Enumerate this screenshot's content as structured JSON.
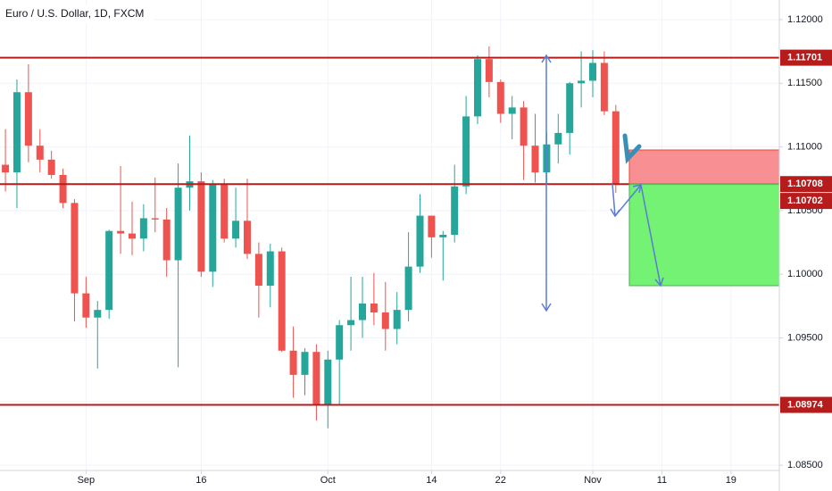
{
  "chart_data": {
    "type": "candlestick",
    "title": "Euro / U.S. Dollar, 1D, FXCM",
    "up_color": "#26a69a",
    "down_color": "#ef5350",
    "level_color": "#b71c1c",
    "grid": true,
    "xlim": [
      -0.47,
      67.2
    ],
    "xticks": [
      {
        "value": 7,
        "label": "Sep"
      },
      {
        "value": 17,
        "label": "16"
      },
      {
        "value": 28,
        "label": "Oct"
      },
      {
        "value": 37,
        "label": "14"
      },
      {
        "value": 43,
        "label": "22"
      },
      {
        "value": 51,
        "label": "Nov"
      },
      {
        "value": 57,
        "label": "11"
      },
      {
        "value": 63,
        "label": "19"
      }
    ],
    "ylim": [
      1.08459,
      1.12154
    ],
    "yticks": [
      {
        "value": 1.085,
        "label": "1.08500"
      },
      {
        "value": 1.09,
        "label": "1.09000"
      },
      {
        "value": 1.095,
        "label": "1.09500"
      },
      {
        "value": 1.1,
        "label": "1.10000"
      },
      {
        "value": 1.105,
        "label": "1.10500"
      },
      {
        "value": 1.11,
        "label": "1.11000"
      },
      {
        "value": 1.115,
        "label": "1.11500"
      },
      {
        "value": 1.12,
        "label": "1.12000"
      }
    ],
    "levels": [
      1.11701,
      1.10708,
      1.08974
    ],
    "open": [
      1.1086,
      1.108,
      1.1143,
      1.1101,
      1.109,
      1.1078,
      1.1056,
      1.0985,
      1.0966,
      1.0972,
      1.1034,
      1.1032,
      1.1028,
      1.1044,
      1.1043,
      1.1011,
      1.1068,
      1.1073,
      1.1002,
      1.1071,
      1.1028,
      1.1042,
      1.1016,
      1.0991,
      1.1018,
      1.094,
      1.0921,
      1.0939,
      1.0898,
      1.0933,
      1.096,
      1.0964,
      1.0977,
      1.097,
      1.0957,
      1.0972,
      1.1006,
      1.1046,
      1.1029,
      1.1031,
      1.1069,
      1.1124,
      1.1169,
      1.1151,
      1.1126,
      1.1131,
      1.1101,
      1.108,
      1.1102,
      1.1111,
      1.115,
      1.1152,
      1.1166,
      1.1128
    ],
    "high": [
      1.1114,
      1.1153,
      1.1165,
      1.1114,
      1.1097,
      1.1083,
      1.1059,
      1.0998,
      1.0979,
      1.1035,
      1.1085,
      1.1057,
      1.1055,
      1.1076,
      1.1052,
      1.1087,
      1.1109,
      1.108,
      1.1074,
      1.1075,
      1.1068,
      1.1075,
      1.1025,
      1.1024,
      1.1021,
      1.0959,
      1.0942,
      1.0945,
      1.094,
      1.0964,
      1.0998,
      1.0998,
      1.1001,
      1.0994,
      1.0986,
      1.1033,
      1.1063,
      1.1046,
      1.1034,
      1.1086,
      1.114,
      1.1172,
      1.1179,
      1.1153,
      1.114,
      1.1136,
      1.1126,
      1.1112,
      1.1126,
      1.1151,
      1.1175,
      1.1176,
      1.1175,
      1.1133
    ],
    "low": [
      1.1065,
      1.1052,
      1.1088,
      1.108,
      1.1075,
      1.1052,
      1.0963,
      1.0958,
      1.0926,
      1.0965,
      1.1016,
      1.1015,
      1.1018,
      1.1033,
      1.0998,
      1.0927,
      1.105,
      1.0998,
      1.099,
      1.1025,
      1.1021,
      1.1012,
      1.0966,
      1.0974,
      1.0939,
      1.0903,
      1.0905,
      1.0885,
      1.0879,
      1.0897,
      1.094,
      1.095,
      1.096,
      1.094,
      1.0945,
      1.0963,
      1.1001,
      1.1013,
      1.0995,
      1.1025,
      1.1063,
      1.1118,
      1.1139,
      1.1119,
      1.1106,
      1.1074,
      1.1072,
      1.1071,
      1.1087,
      1.1094,
      1.1131,
      1.1139,
      1.1125,
      1.1064
    ],
    "close": [
      1.108,
      1.1143,
      1.1101,
      1.109,
      1.1078,
      1.1056,
      1.0985,
      1.0966,
      1.0972,
      1.1034,
      1.1032,
      1.1028,
      1.1044,
      1.1043,
      1.1011,
      1.1068,
      1.1073,
      1.1002,
      1.1071,
      1.1028,
      1.1042,
      1.1016,
      1.0991,
      1.1018,
      1.094,
      1.0921,
      1.0939,
      1.0898,
      1.0933,
      1.096,
      1.0964,
      1.0977,
      1.097,
      1.0957,
      1.0972,
      1.1006,
      1.1046,
      1.1029,
      1.1031,
      1.1069,
      1.1124,
      1.1169,
      1.1151,
      1.1126,
      1.1131,
      1.1101,
      1.108,
      1.1102,
      1.1111,
      1.115,
      1.1152,
      1.1166,
      1.1128,
      1.10702
    ]
  }
}
